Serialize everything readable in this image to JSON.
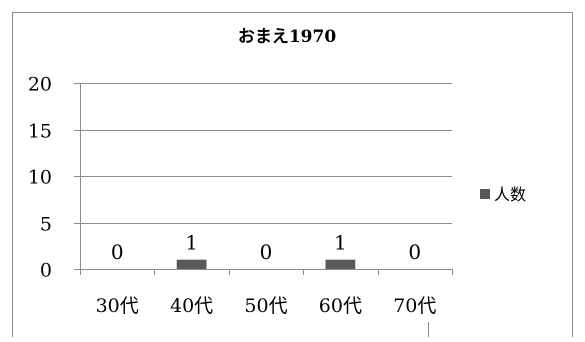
{
  "chart_data": {
    "type": "bar",
    "title": "おまえ1970",
    "categories": [
      "30代",
      "40代",
      "50代",
      "60代",
      "70代"
    ],
    "series": [
      {
        "name": "人数",
        "values": [
          0,
          1,
          0,
          1,
          0
        ],
        "color": "#595959"
      }
    ],
    "ylim": [
      0,
      20
    ],
    "yticks": [
      0,
      5,
      10,
      15,
      20
    ],
    "grid": true,
    "legend": "right",
    "data_labels": true
  }
}
